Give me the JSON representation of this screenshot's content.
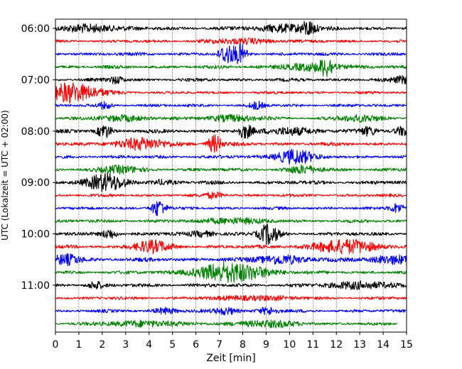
{
  "chart_data": {
    "type": "line",
    "xlabel": "Zeit  [min]",
    "ylabel": "UTC (Lokalzeit = UTC + 02:00)",
    "xlim": [
      0,
      15
    ],
    "x_ticks": [
      "0",
      "1",
      "2",
      "3",
      "4",
      "5",
      "6",
      "7",
      "8",
      "9",
      "10",
      "11",
      "12",
      "13",
      "14",
      "15"
    ],
    "y_ticks": [
      "06:00",
      "07:00",
      "08:00",
      "09:00",
      "10:00",
      "11:00"
    ],
    "trace_start": "06:00",
    "trace_interval_min": 15,
    "trace_colors": [
      "#000000",
      "#ff0000",
      "#0000ff",
      "#008000"
    ],
    "vertical_grid": true,
    "traces": [
      {
        "end": 15,
        "amp": 2.0,
        "events": [
          [
            1.5,
            5,
            1.2
          ],
          [
            9.8,
            5,
            1.1
          ],
          [
            10.8,
            9,
            0.3
          ]
        ]
      },
      {
        "end": 15,
        "amp": 1.6,
        "events": [
          [
            8.0,
            3,
            1.5
          ]
        ]
      },
      {
        "end": 15,
        "amp": 1.8,
        "events": [
          [
            7.3,
            13,
            0.3
          ],
          [
            7.9,
            13,
            0.3
          ]
        ]
      },
      {
        "end": 15,
        "amp": 1.8,
        "events": [
          [
            11.0,
            4,
            1.5
          ],
          [
            11.6,
            11,
            0.3
          ]
        ]
      },
      {
        "end": 15,
        "amp": 1.8,
        "events": [
          [
            2.6,
            5,
            0.3
          ],
          [
            15.0,
            5,
            0.6
          ]
        ]
      },
      {
        "end": 15,
        "amp": 1.5,
        "events": [
          [
            0.9,
            10,
            1.2
          ],
          [
            0.4,
            5,
            0.6
          ]
        ]
      },
      {
        "end": 15,
        "amp": 1.6,
        "events": [
          [
            2.1,
            4,
            0.3
          ],
          [
            8.6,
            5,
            0.3
          ]
        ]
      },
      {
        "end": 15,
        "amp": 1.6,
        "events": [
          [
            2.8,
            4,
            1.0
          ],
          [
            7.5,
            4,
            1.2
          ],
          [
            13.0,
            4,
            1.0
          ]
        ]
      },
      {
        "end": 15,
        "amp": 2.0,
        "events": [
          [
            2.1,
            9,
            0.3
          ],
          [
            8.1,
            9,
            0.3
          ],
          [
            10.0,
            5,
            1.0
          ],
          [
            13.4,
            6,
            0.4
          ],
          [
            14.9,
            6,
            0.4
          ]
        ]
      },
      {
        "end": 15,
        "amp": 2.0,
        "events": [
          [
            3.7,
            7,
            1.2
          ],
          [
            6.8,
            12,
            0.3
          ]
        ]
      },
      {
        "end": 15,
        "amp": 1.8,
        "events": [
          [
            10.2,
            10,
            0.8
          ]
        ]
      },
      {
        "end": 15,
        "amp": 1.8,
        "events": [
          [
            2.7,
            5,
            0.8
          ],
          [
            10.6,
            5,
            0.7
          ]
        ]
      },
      {
        "end": 15,
        "amp": 2.0,
        "events": [
          [
            2.1,
            12,
            0.8
          ],
          [
            4.5,
            3,
            0.5
          ]
        ]
      },
      {
        "end": 15,
        "amp": 1.6,
        "events": [
          [
            6.8,
            4,
            0.4
          ]
        ]
      },
      {
        "end": 15,
        "amp": 1.6,
        "events": [
          [
            4.4,
            12,
            0.3
          ],
          [
            14.6,
            7,
            0.3
          ]
        ]
      },
      {
        "end": 15,
        "amp": 1.8,
        "events": [
          [
            7.5,
            4,
            1.2
          ]
        ]
      },
      {
        "end": 15,
        "amp": 2.0,
        "events": [
          [
            2.3,
            7,
            0.3
          ],
          [
            9.1,
            14,
            0.4
          ],
          [
            6.3,
            4,
            0.5
          ]
        ]
      },
      {
        "end": 15,
        "amp": 1.8,
        "events": [
          [
            4.1,
            8,
            0.8
          ],
          [
            12.4,
            9,
            1.4
          ]
        ]
      },
      {
        "end": 15,
        "amp": 2.2,
        "events": [
          [
            0.5,
            7,
            0.6
          ],
          [
            9.6,
            6,
            1.0
          ],
          [
            14.5,
            5,
            1.2
          ]
        ]
      },
      {
        "end": 15,
        "amp": 1.8,
        "events": [
          [
            7.5,
            13,
            1.6
          ]
        ]
      },
      {
        "end": 15,
        "amp": 2.0,
        "events": [
          [
            1.7,
            5,
            0.3
          ],
          [
            13.0,
            5,
            1.2
          ]
        ]
      },
      {
        "end": 15,
        "amp": 1.6,
        "events": [
          [
            8.5,
            3,
            1.5
          ]
        ]
      },
      {
        "end": 15,
        "amp": 1.7,
        "events": [
          [
            4.7,
            4,
            0.5
          ],
          [
            7.3,
            5,
            0.5
          ],
          [
            9.1,
            5,
            0.4
          ]
        ]
      },
      {
        "end": 14.6,
        "amp": 1.6,
        "events": [
          [
            3.8,
            4,
            1.5
          ],
          [
            9.0,
            4,
            1.5
          ]
        ]
      }
    ]
  }
}
